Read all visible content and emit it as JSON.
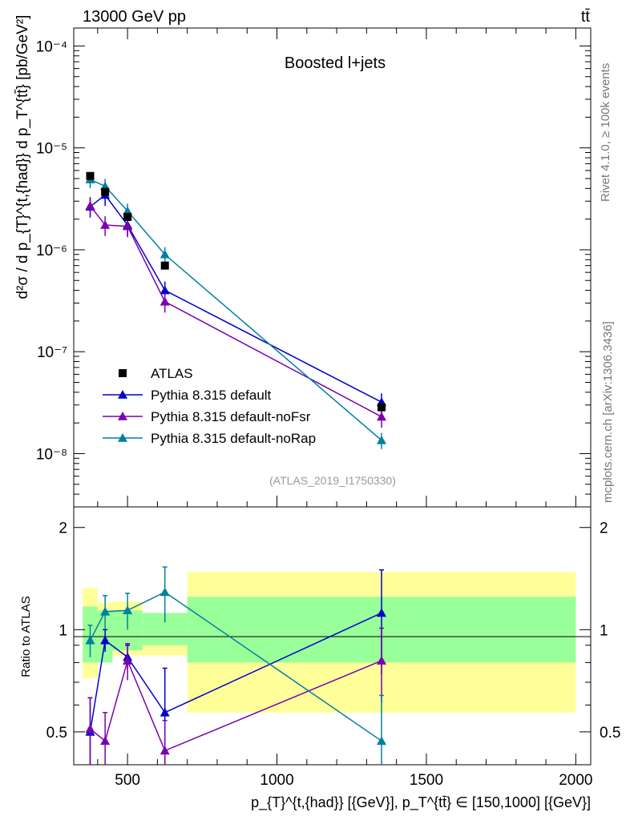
{
  "header": {
    "energy_label": "13000 GeV pp",
    "process_label": "tt̄",
    "panel_title": "Boosted l+jets",
    "rivet_label": "Rivet 4.1.0, ≥ 100k events",
    "mcplots_label": "mcplots.cern.ch [arXiv:1306.3436]",
    "analysis_id": "(ATLAS_2019_I1750330)"
  },
  "axes": {
    "main_ylabel": "d²σ / d p_{T}^{t,{had}} d p_T^{tt̄} [pb/GeV²]",
    "ratio_ylabel": "Ratio to ATLAS",
    "xlabel": "p_{T}^{t,{had}} [{GeV}], p_T^{tt̄} ∈ [150,1000] [{GeV}]",
    "x_ticks": [
      "500",
      "1000",
      "1500",
      "2000"
    ],
    "main_y_ticks": [
      "10⁻⁸",
      "10⁻⁷",
      "10⁻⁶",
      "10⁻⁵",
      "10⁻⁴"
    ],
    "ratio_y_ticks": [
      "0.5",
      "1",
      "2"
    ]
  },
  "colors": {
    "data": "#000000",
    "default": "#0000cc",
    "noFsr": "#7a00b0",
    "noRap": "#0080a0",
    "band_inner": "#99ff99",
    "band_outer": "#ffff99"
  },
  "chart_data": {
    "type": "scatter",
    "title": "Boosted l+jets",
    "xlim": [
      320,
      2050
    ],
    "ylim_main": [
      3e-09,
      0.00015
    ],
    "ylim_ratio": [
      0.4,
      2.3
    ],
    "yscale_main": "log",
    "yscale_ratio": "log",
    "legend_position": "lower-left",
    "data": {
      "name": "ATLAS",
      "x": [
        375,
        425,
        500,
        625,
        1350
      ],
      "y": [
        5.3e-06,
        3.7e-06,
        2.1e-06,
        7e-07,
        2.85e-08
      ],
      "bins": [
        [
          350,
          400
        ],
        [
          400,
          450
        ],
        [
          450,
          550
        ],
        [
          550,
          700
        ],
        [
          700,
          2000
        ]
      ],
      "band_inner": [
        [
          0.8,
          1.17
        ],
        [
          0.8,
          1.14
        ],
        [
          0.87,
          1.14
        ],
        [
          0.9,
          1.12
        ],
        [
          0.8,
          1.25
        ]
      ],
      "band_outer": [
        [
          0.72,
          1.33
        ],
        [
          0.83,
          1.2
        ],
        [
          0.84,
          1.21
        ],
        [
          0.84,
          1.12
        ],
        [
          0.57,
          1.48
        ]
      ]
    },
    "series": [
      {
        "name": "Pythia 8.315 default",
        "x": [
          375,
          425,
          500,
          625,
          1350
        ],
        "y": [
          2.65e-06,
          3.45e-06,
          1.75e-06,
          4e-07,
          3.2e-08
        ],
        "ratio": [
          0.5,
          0.93,
          0.83,
          0.57,
          1.12
        ],
        "ratio_err": [
          0.13,
          0.07,
          0.07,
          0.2,
          0.38
        ]
      },
      {
        "name": "Pythia 8.315 default-noFsr",
        "x": [
          375,
          425,
          500,
          625,
          1350
        ],
        "y": [
          2.7e-06,
          1.75e-06,
          1.7e-06,
          3.1e-07,
          2.3e-08
        ],
        "ratio": [
          0.51,
          0.47,
          0.81,
          0.44,
          0.81
        ],
        "ratio_err": [
          0.12,
          0.1,
          0.1,
          0.1,
          0.2
        ]
      },
      {
        "name": "Pythia 8.315 default-noRap",
        "x": [
          375,
          425,
          500,
          625,
          1350
        ],
        "y": [
          4.9e-06,
          4.2e-06,
          2.4e-06,
          9e-07,
          1.35e-08
        ],
        "ratio": [
          0.93,
          1.13,
          1.14,
          1.29,
          0.47
        ],
        "ratio_err": [
          0.1,
          0.13,
          0.14,
          0.24,
          0.17
        ]
      }
    ]
  }
}
